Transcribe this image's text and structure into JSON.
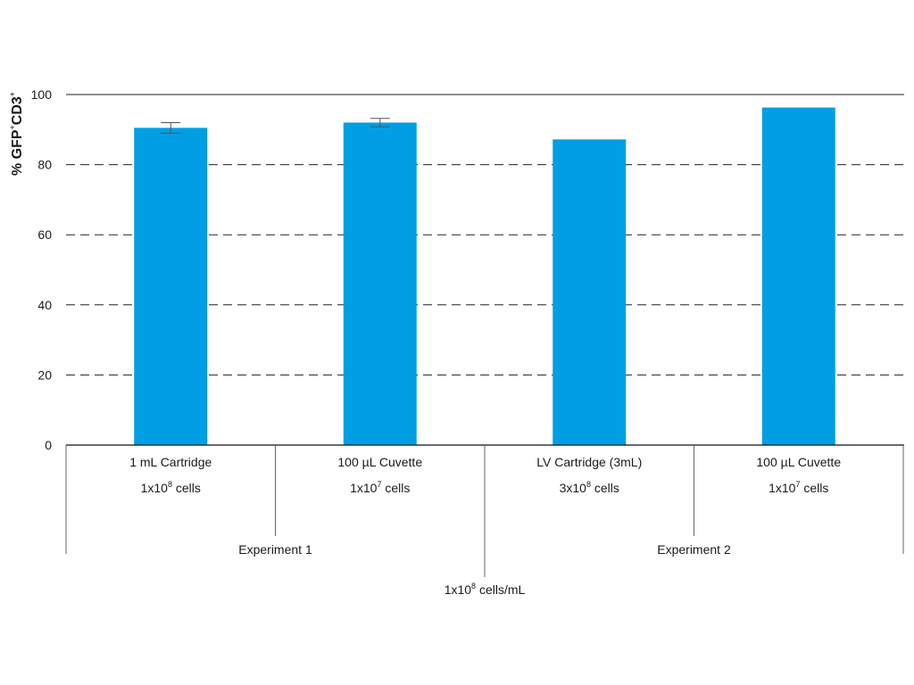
{
  "chart_data": {
    "type": "bar",
    "ylabel": {
      "base": "% GFP",
      "sup1": "+",
      "mid": "CD3",
      "sup2": "+"
    },
    "ylim": [
      0,
      100
    ],
    "yticks": [
      0,
      20,
      40,
      60,
      80,
      100
    ],
    "grid": "dashed horizontal",
    "bar_color": "#009FE3",
    "categories": [
      {
        "line1": "1 mL Cartridge",
        "line2_base": "1x10",
        "line2_exp": "8",
        "line2_unit": " cells",
        "value": 90.5,
        "error": 1.5
      },
      {
        "line1": "100 µL Cuvette",
        "line2_base": "1x10",
        "line2_exp": "7",
        "line2_unit": " cells",
        "value": 92,
        "error": 1.2
      },
      {
        "line1": "LV Cartridge (3mL)",
        "line2_base": "3x10",
        "line2_exp": "8",
        "line2_unit": " cells",
        "value": 87.2,
        "error": null
      },
      {
        "line1": "100 µL Cuvette",
        "line2_base": "1x10",
        "line2_exp": "7",
        "line2_unit": " cells",
        "value": 96.3,
        "error": null
      }
    ],
    "groups": [
      {
        "label": "Experiment 1",
        "span": [
          0,
          1
        ]
      },
      {
        "label": "Experiment 2",
        "span": [
          2,
          3
        ]
      }
    ],
    "footer": {
      "base": "1x10",
      "exp": "8",
      "unit": " cells/mL"
    }
  }
}
